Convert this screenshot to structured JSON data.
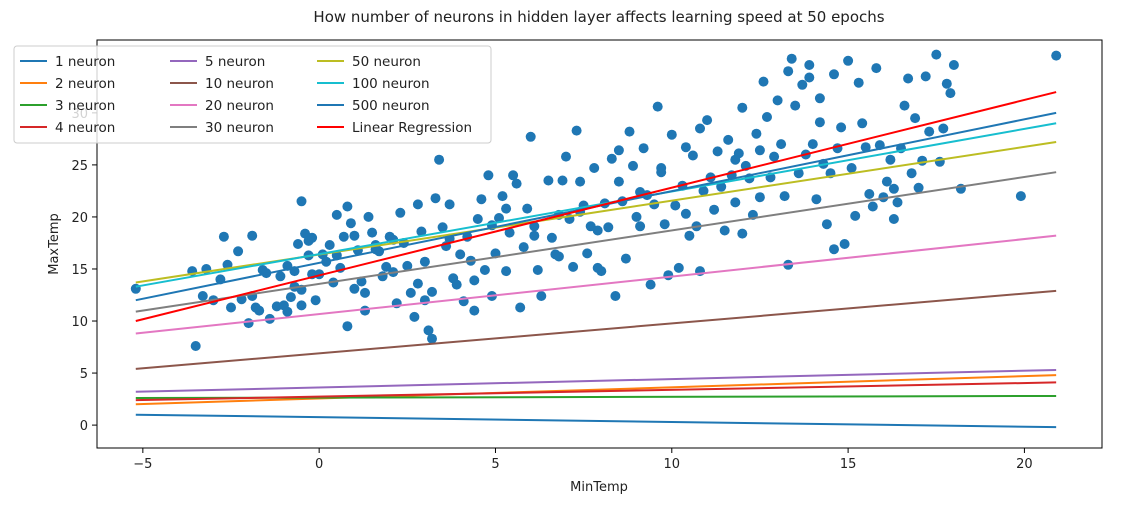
{
  "chart_data": {
    "type": "scatter",
    "title": "How number of neurons in hidden layer affects learning speed at 50 epochs",
    "xlabel": "MinTemp",
    "ylabel": "MaxTemp",
    "xlim": [
      -6.3,
      22.2
    ],
    "ylim": [
      -2.2,
      37.0
    ],
    "xticks": [
      -5,
      0,
      5,
      10,
      15,
      20
    ],
    "yticks": [
      0,
      5,
      10,
      15,
      20,
      25,
      30
    ],
    "grid": false,
    "legend_placement": "top-left",
    "line_x": [
      -5.2,
      20.9
    ],
    "series": [
      {
        "name": "1 neuron",
        "color": "#1f77b4",
        "y": [
          1.0,
          -0.2
        ]
      },
      {
        "name": "2 neuron",
        "color": "#ff7f0e",
        "y": [
          2.0,
          4.8
        ]
      },
      {
        "name": "3 neuron",
        "color": "#2ca02c",
        "y": [
          2.6,
          2.8
        ]
      },
      {
        "name": "4 neuron",
        "color": "#d62728",
        "y": [
          2.4,
          4.1
        ]
      },
      {
        "name": "5 neuron",
        "color": "#9467bd",
        "y": [
          3.2,
          5.3
        ]
      },
      {
        "name": "10 neuron",
        "color": "#8c564b",
        "y": [
          5.4,
          12.9
        ]
      },
      {
        "name": "20 neuron",
        "color": "#e377c2",
        "y": [
          8.8,
          18.2
        ]
      },
      {
        "name": "30 neuron",
        "color": "#7f7f7f",
        "y": [
          10.9,
          24.3
        ]
      },
      {
        "name": "50 neuron",
        "color": "#bcbd22",
        "y": [
          13.7,
          27.2
        ]
      },
      {
        "name": "100 neuron",
        "color": "#17becf",
        "y": [
          13.3,
          29.0
        ]
      },
      {
        "name": "500 neuron",
        "color": "#1f77b4",
        "y": [
          12.0,
          30.0
        ]
      },
      {
        "name": "Linear Regression",
        "color": "#ff0000",
        "y": [
          10.0,
          32.0
        ]
      }
    ],
    "scatter_color": "#1f77b4",
    "points": [
      [
        -5.2,
        13.1
      ],
      [
        -3.6,
        14.8
      ],
      [
        -3.5,
        7.6
      ],
      [
        -3.3,
        12.4
      ],
      [
        -3.2,
        15.0
      ],
      [
        -3.0,
        12.0
      ],
      [
        -2.8,
        14.0
      ],
      [
        -2.7,
        18.1
      ],
      [
        -2.6,
        15.4
      ],
      [
        -2.5,
        11.3
      ],
      [
        -2.3,
        16.7
      ],
      [
        -2.2,
        12.1
      ],
      [
        -2.0,
        9.8
      ],
      [
        -1.9,
        12.4
      ],
      [
        -1.8,
        11.3
      ],
      [
        -1.7,
        11.0
      ],
      [
        -1.6,
        14.9
      ],
      [
        -1.5,
        14.6
      ],
      [
        -1.4,
        10.2
      ],
      [
        -1.2,
        11.4
      ],
      [
        -1.1,
        14.3
      ],
      [
        -1.0,
        11.5
      ],
      [
        -0.9,
        10.9
      ],
      [
        -0.8,
        12.3
      ],
      [
        -0.7,
        14.8
      ],
      [
        -0.6,
        17.4
      ],
      [
        -0.5,
        13.0
      ],
      [
        -0.5,
        11.5
      ],
      [
        -0.4,
        18.4
      ],
      [
        -0.3,
        16.3
      ],
      [
        -0.2,
        14.5
      ],
      [
        -0.1,
        12.0
      ],
      [
        0.0,
        14.5
      ],
      [
        -0.5,
        21.5
      ],
      [
        -0.3,
        17.7
      ],
      [
        -0.2,
        18.0
      ],
      [
        0.1,
        16.4
      ],
      [
        0.2,
        15.7
      ],
      [
        0.3,
        17.3
      ],
      [
        0.4,
        13.7
      ],
      [
        0.5,
        16.3
      ],
      [
        0.6,
        15.1
      ],
      [
        0.7,
        18.1
      ],
      [
        0.8,
        21.0
      ],
      [
        0.9,
        19.4
      ],
      [
        1.0,
        18.2
      ],
      [
        1.1,
        16.8
      ],
      [
        1.2,
        13.8
      ],
      [
        1.3,
        12.7
      ],
      [
        1.4,
        20.0
      ],
      [
        1.5,
        18.5
      ],
      [
        1.6,
        17.3
      ],
      [
        1.7,
        16.7
      ],
      [
        1.8,
        14.3
      ],
      [
        1.9,
        15.2
      ],
      [
        2.0,
        18.1
      ],
      [
        2.1,
        14.7
      ],
      [
        2.2,
        11.7
      ],
      [
        2.3,
        20.4
      ],
      [
        2.4,
        17.5
      ],
      [
        2.5,
        15.3
      ],
      [
        2.6,
        12.7
      ],
      [
        2.7,
        10.4
      ],
      [
        2.8,
        13.6
      ],
      [
        2.9,
        18.6
      ],
      [
        3.0,
        15.7
      ],
      [
        3.1,
        9.1
      ],
      [
        3.2,
        8.3
      ],
      [
        3.3,
        21.8
      ],
      [
        3.4,
        25.5
      ],
      [
        3.5,
        19.0
      ],
      [
        3.6,
        17.2
      ],
      [
        3.7,
        21.2
      ],
      [
        3.8,
        14.1
      ],
      [
        3.9,
        13.5
      ],
      [
        4.0,
        16.4
      ],
      [
        4.1,
        11.9
      ],
      [
        4.2,
        18.1
      ],
      [
        4.3,
        15.8
      ],
      [
        4.4,
        13.9
      ],
      [
        4.5,
        19.8
      ],
      [
        4.6,
        21.7
      ],
      [
        4.7,
        14.9
      ],
      [
        4.8,
        24.0
      ],
      [
        4.9,
        12.4
      ],
      [
        5.0,
        16.5
      ],
      [
        5.1,
        19.9
      ],
      [
        5.2,
        22.0
      ],
      [
        5.3,
        20.8
      ],
      [
        5.4,
        18.5
      ],
      [
        5.5,
        24.0
      ],
      [
        5.6,
        23.2
      ],
      [
        5.7,
        11.3
      ],
      [
        5.8,
        17.1
      ],
      [
        5.9,
        20.8
      ],
      [
        6.0,
        27.7
      ],
      [
        6.1,
        19.1
      ],
      [
        6.2,
        14.9
      ],
      [
        6.3,
        12.4
      ],
      [
        6.5,
        23.5
      ],
      [
        6.6,
        18.0
      ],
      [
        6.7,
        16.4
      ],
      [
        6.8,
        20.2
      ],
      [
        6.9,
        23.5
      ],
      [
        7.0,
        25.8
      ],
      [
        7.1,
        19.8
      ],
      [
        7.2,
        15.2
      ],
      [
        7.3,
        28.3
      ],
      [
        7.4,
        23.4
      ],
      [
        7.5,
        21.1
      ],
      [
        7.6,
        16.5
      ],
      [
        7.7,
        19.1
      ],
      [
        7.8,
        24.7
      ],
      [
        7.9,
        18.7
      ],
      [
        8.0,
        14.8
      ],
      [
        8.1,
        21.3
      ],
      [
        8.2,
        19.0
      ],
      [
        8.3,
        25.6
      ],
      [
        8.4,
        12.4
      ],
      [
        8.5,
        23.4
      ],
      [
        8.6,
        21.5
      ],
      [
        8.7,
        16.0
      ],
      [
        8.8,
        28.2
      ],
      [
        8.9,
        24.9
      ],
      [
        9.0,
        20.0
      ],
      [
        9.1,
        19.1
      ],
      [
        9.2,
        26.6
      ],
      [
        9.3,
        22.1
      ],
      [
        9.4,
        13.5
      ],
      [
        9.5,
        21.2
      ],
      [
        9.6,
        30.6
      ],
      [
        9.7,
        24.7
      ],
      [
        9.8,
        19.3
      ],
      [
        9.9,
        14.4
      ],
      [
        10.0,
        27.9
      ],
      [
        10.1,
        21.1
      ],
      [
        10.2,
        15.1
      ],
      [
        10.3,
        23.0
      ],
      [
        10.4,
        20.3
      ],
      [
        10.5,
        18.2
      ],
      [
        10.6,
        25.9
      ],
      [
        10.7,
        19.1
      ],
      [
        10.8,
        14.8
      ],
      [
        10.9,
        22.5
      ],
      [
        11.0,
        29.3
      ],
      [
        11.1,
        23.8
      ],
      [
        11.2,
        20.7
      ],
      [
        11.3,
        26.3
      ],
      [
        11.4,
        22.9
      ],
      [
        11.5,
        18.7
      ],
      [
        11.6,
        27.4
      ],
      [
        11.7,
        24.0
      ],
      [
        11.8,
        21.4
      ],
      [
        11.9,
        26.1
      ],
      [
        12.0,
        30.5
      ],
      [
        12.1,
        24.9
      ],
      [
        12.2,
        23.7
      ],
      [
        12.3,
        20.2
      ],
      [
        12.4,
        28.0
      ],
      [
        12.5,
        26.4
      ],
      [
        12.6,
        33.0
      ],
      [
        12.7,
        29.6
      ],
      [
        12.8,
        23.8
      ],
      [
        12.9,
        25.8
      ],
      [
        13.0,
        31.2
      ],
      [
        13.1,
        27.0
      ],
      [
        13.2,
        22.0
      ],
      [
        13.3,
        34.0
      ],
      [
        13.4,
        35.2
      ],
      [
        13.5,
        30.7
      ],
      [
        13.6,
        24.2
      ],
      [
        13.7,
        32.7
      ],
      [
        13.8,
        26.0
      ],
      [
        13.9,
        33.4
      ],
      [
        14.0,
        27.0
      ],
      [
        14.1,
        21.7
      ],
      [
        14.2,
        31.4
      ],
      [
        14.3,
        25.1
      ],
      [
        14.4,
        19.3
      ],
      [
        14.5,
        24.2
      ],
      [
        14.6,
        33.7
      ],
      [
        14.7,
        26.6
      ],
      [
        14.8,
        28.6
      ],
      [
        14.9,
        17.4
      ],
      [
        15.0,
        35.0
      ],
      [
        15.1,
        24.7
      ],
      [
        15.2,
        20.1
      ],
      [
        15.3,
        32.9
      ],
      [
        15.4,
        29.0
      ],
      [
        15.5,
        26.7
      ],
      [
        15.6,
        22.2
      ],
      [
        15.7,
        21.0
      ],
      [
        15.8,
        34.3
      ],
      [
        15.9,
        26.9
      ],
      [
        16.0,
        21.9
      ],
      [
        16.1,
        23.4
      ],
      [
        16.2,
        25.5
      ],
      [
        16.3,
        19.8
      ],
      [
        16.4,
        21.4
      ],
      [
        16.5,
        26.6
      ],
      [
        16.6,
        30.7
      ],
      [
        16.7,
        33.3
      ],
      [
        16.8,
        24.2
      ],
      [
        16.9,
        29.5
      ],
      [
        17.0,
        22.8
      ],
      [
        17.1,
        25.4
      ],
      [
        17.2,
        33.5
      ],
      [
        17.3,
        28.2
      ],
      [
        17.5,
        35.6
      ],
      [
        17.6,
        25.3
      ],
      [
        17.7,
        28.5
      ],
      [
        17.8,
        32.8
      ],
      [
        18.0,
        34.6
      ],
      [
        18.2,
        22.7
      ],
      [
        19.9,
        22.0
      ],
      [
        20.9,
        35.5
      ],
      [
        0.8,
        9.5
      ],
      [
        1.3,
        11.0
      ],
      [
        2.1,
        17.8
      ],
      [
        3.2,
        12.8
      ],
      [
        4.4,
        11.0
      ],
      [
        6.1,
        18.2
      ],
      [
        7.9,
        15.1
      ],
      [
        9.1,
        22.4
      ],
      [
        10.8,
        28.5
      ],
      [
        12.0,
        18.4
      ],
      [
        13.3,
        15.4
      ],
      [
        14.6,
        16.9
      ],
      [
        16.3,
        22.7
      ],
      [
        17.9,
        31.9
      ],
      [
        11.8,
        25.5
      ],
      [
        8.5,
        26.4
      ],
      [
        5.3,
        14.8
      ],
      [
        3.7,
        17.9
      ],
      [
        2.8,
        21.2
      ],
      [
        1.6,
        16.9
      ],
      [
        0.5,
        20.2
      ],
      [
        -0.9,
        15.3
      ],
      [
        -1.9,
        18.2
      ],
      [
        6.8,
        16.2
      ],
      [
        9.7,
        24.3
      ],
      [
        12.5,
        21.9
      ],
      [
        14.2,
        29.1
      ],
      [
        10.4,
        26.7
      ],
      [
        7.4,
        20.5
      ],
      [
        4.9,
        19.2
      ],
      [
        3.0,
        12.0
      ],
      [
        1.0,
        13.1
      ],
      [
        -0.7,
        13.3
      ],
      [
        13.9,
        34.6
      ]
    ]
  }
}
